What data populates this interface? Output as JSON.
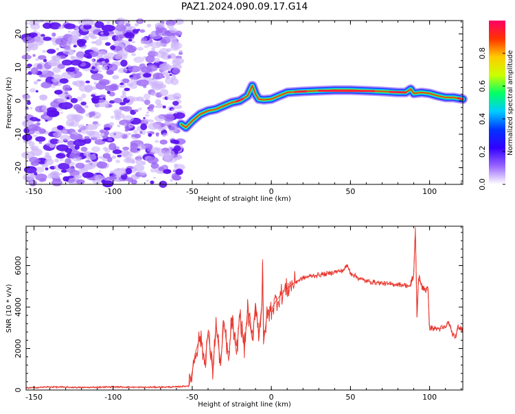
{
  "figure": {
    "title": "PAZ1.2024.090.09.17.G14"
  },
  "chart_data": [
    {
      "type": "heatmap",
      "name": "spectrogram",
      "xlabel": "Height of straight line (km)",
      "ylabel": "Frequency (Hz)",
      "xlim": [
        -155,
        121
      ],
      "ylim": [
        -25,
        24
      ],
      "x_ticks": [
        -150,
        -100,
        -50,
        0,
        50,
        100
      ],
      "y_ticks": [
        -20,
        -10,
        0,
        10,
        20
      ],
      "noise_region_x": [
        -155,
        -57
      ],
      "ridge": {
        "x": [
          -57,
          -54,
          -50,
          -45,
          -40,
          -35,
          -30,
          -25,
          -20,
          -15,
          -12,
          -10,
          -8,
          -5,
          0,
          5,
          10,
          20,
          30,
          40,
          50,
          60,
          70,
          80,
          85,
          88,
          90,
          95,
          100,
          105,
          110,
          115,
          121
        ],
        "y": [
          -7,
          -8,
          -6,
          -4,
          -3,
          -2.5,
          -1.5,
          -0.5,
          0,
          1.5,
          4.5,
          2,
          0.5,
          0.3,
          0.5,
          1.5,
          2.5,
          2.8,
          3,
          3.2,
          3.2,
          3,
          2.8,
          2.5,
          2.5,
          3.5,
          2.2,
          2.5,
          2.2,
          1.5,
          1,
          1,
          0.5
        ]
      },
      "colorbar": {
        "label": "Normalized spectral amplitude",
        "range": [
          0,
          1
        ],
        "ticks": [
          0.0,
          0.2,
          0.4,
          0.6,
          0.8
        ],
        "colormap": [
          "#ffffff",
          "#9966ff",
          "#3300ff",
          "#0033ff",
          "#00ccff",
          "#00ff66",
          "#ccff00",
          "#ffcc00",
          "#ff3300",
          "#ff0066"
        ]
      }
    },
    {
      "type": "line",
      "name": "snr",
      "xlabel": "Height of straight line (km)",
      "ylabel": "SNR (10 * v/v)",
      "xlim": [
        -155,
        121
      ],
      "ylim": [
        0,
        7900
      ],
      "x_ticks": [
        -150,
        -100,
        -50,
        0,
        50,
        100
      ],
      "y_ticks": [
        0,
        2000,
        4000,
        6000
      ],
      "series": [
        {
          "color": "#e8332a",
          "x": [
            -155,
            -140,
            -120,
            -100,
            -80,
            -60,
            -52,
            -50,
            -48,
            -45,
            -42,
            -40,
            -37,
            -35,
            -32,
            -30,
            -27,
            -25,
            -22,
            -20,
            -17,
            -15,
            -12,
            -10,
            -8,
            -6,
            -5.5,
            -5,
            -3,
            0,
            3,
            6,
            10,
            15,
            20,
            25,
            30,
            35,
            40,
            45,
            48,
            50,
            55,
            60,
            65,
            70,
            75,
            80,
            85,
            88,
            90,
            91,
            92,
            93,
            95,
            97,
            99,
            100,
            105,
            110,
            112,
            114,
            116,
            118,
            121
          ],
          "y": [
            100,
            150,
            120,
            150,
            130,
            150,
            200,
            900,
            1800,
            2600,
            1300,
            2800,
            900,
            3200,
            1200,
            3300,
            1400,
            3500,
            1700,
            3700,
            2000,
            3900,
            2400,
            4200,
            2700,
            4100,
            6300,
            2200,
            3500,
            3900,
            4300,
            4600,
            4900,
            5200,
            5400,
            5500,
            5550,
            5600,
            5700,
            5750,
            6000,
            5650,
            5400,
            5250,
            5200,
            5150,
            5100,
            5100,
            5050,
            5000,
            5600,
            7850,
            3500,
            5400,
            5050,
            4900,
            4800,
            3000,
            2950,
            3000,
            3300,
            2800,
            2500,
            3000,
            2950
          ]
        }
      ]
    }
  ]
}
